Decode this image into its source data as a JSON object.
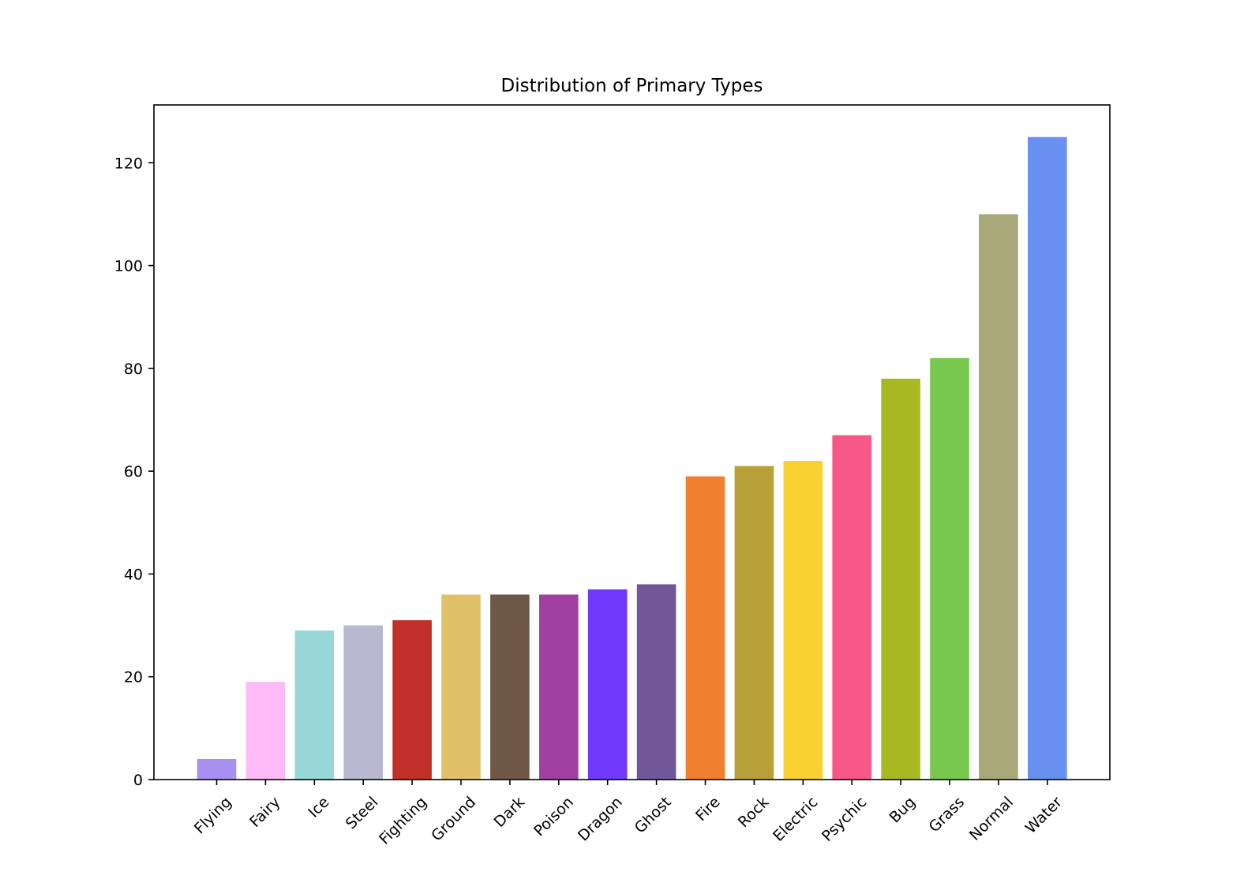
{
  "chart_data": {
    "type": "bar",
    "title": "Distribution of Primary Types",
    "xlabel": "",
    "ylabel": "",
    "categories": [
      "Flying",
      "Fairy",
      "Ice",
      "Steel",
      "Fighting",
      "Ground",
      "Dark",
      "Poison",
      "Dragon",
      "Ghost",
      "Fire",
      "Rock",
      "Electric",
      "Psychic",
      "Bug",
      "Grass",
      "Normal",
      "Water"
    ],
    "values": [
      4,
      19,
      29,
      30,
      31,
      36,
      36,
      36,
      37,
      38,
      59,
      61,
      62,
      67,
      78,
      82,
      110,
      125
    ],
    "colors": [
      "#A890F0",
      "#FFBBF7",
      "#98D8D8",
      "#B8B8D0",
      "#C03028",
      "#E0C068",
      "#705848",
      "#A040A0",
      "#7038F8",
      "#705898",
      "#F08030",
      "#B8A038",
      "#F8D030",
      "#F85888",
      "#A8B820",
      "#78C850",
      "#A8A878",
      "#6890F0"
    ],
    "yticks": [
      "0",
      "20",
      "40",
      "60",
      "80",
      "100",
      "120"
    ],
    "ylim": [
      0,
      131.25
    ],
    "grid": false
  }
}
